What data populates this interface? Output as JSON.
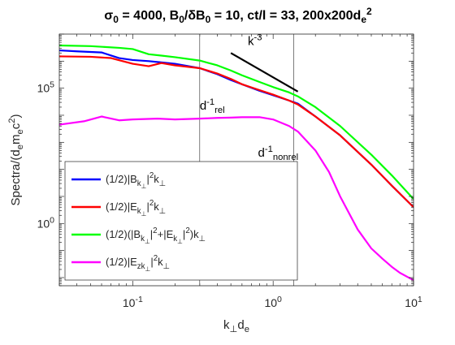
{
  "chart_data": {
    "type": "line",
    "title": {
      "parts": [
        {
          "t": "σ"
        },
        {
          "t": "0",
          "s": "sub"
        },
        {
          "t": " = 4000, B"
        },
        {
          "t": "0",
          "s": "sub"
        },
        {
          "t": "/δB"
        },
        {
          "t": "0",
          "s": "sub"
        },
        {
          "t": " = 10, ct/l = 33, 200x200d"
        },
        {
          "t": "e",
          "s": "sub"
        },
        {
          "t": "2",
          "s": "sup"
        }
      ]
    },
    "xlabel": {
      "parts": [
        {
          "t": "k"
        },
        {
          "t": "⊥",
          "s": "sub"
        },
        {
          "t": "d"
        },
        {
          "t": "e",
          "s": "sub"
        }
      ]
    },
    "ylabel": {
      "parts": [
        {
          "t": "Spectra/(d"
        },
        {
          "t": "e",
          "s": "sub"
        },
        {
          "t": "m"
        },
        {
          "t": "e",
          "s": "sub"
        },
        {
          "t": "c"
        },
        {
          "t": "2",
          "s": "sup"
        },
        {
          "t": ")"
        }
      ]
    },
    "xscale": "log",
    "yscale": "log",
    "xlim": [
      0.03,
      10
    ],
    "ylim": [
      0.005,
      10000000
    ],
    "grid": false,
    "legend_position": "bottom-left",
    "xticks": [
      {
        "value": 0.1,
        "base": "10",
        "exp": "-1"
      },
      {
        "value": 1,
        "base": "10",
        "exp": "0"
      },
      {
        "value": 10,
        "base": "10",
        "exp": "1"
      }
    ],
    "yticks": [
      {
        "value": 1,
        "base": "10",
        "exp": "0"
      },
      {
        "value": 100000,
        "base": "10",
        "exp": "5"
      }
    ],
    "vlines": [
      0.3,
      1.4
    ],
    "series": [
      {
        "name": {
          "parts": [
            {
              "t": "(1/2)|B"
            },
            {
              "t": "k",
              "s": "sub"
            },
            {
              "t": "⊥",
              "s": "sub2"
            },
            {
              "t": "|"
            },
            {
              "t": "2",
              "s": "sup"
            },
            {
              "t": "k"
            },
            {
              "t": "⊥",
              "s": "sub"
            }
          ]
        },
        "color": "#0000ff",
        "points": [
          [
            0.03,
            2500000
          ],
          [
            0.04,
            2300000
          ],
          [
            0.06,
            2100000
          ],
          [
            0.08,
            1300000
          ],
          [
            0.1,
            1100000
          ],
          [
            0.13,
            1000000
          ],
          [
            0.16,
            900000
          ],
          [
            0.2,
            800000
          ],
          [
            0.3,
            550000
          ],
          [
            0.4,
            330000
          ],
          [
            0.5,
            200000
          ],
          [
            0.6,
            140000
          ],
          [
            0.8,
            80000
          ],
          [
            1.0,
            55000
          ],
          [
            1.3,
            35000
          ],
          [
            1.5,
            27000
          ],
          [
            2.0,
            9000
          ],
          [
            3.0,
            1800
          ],
          [
            5.0,
            150
          ],
          [
            7.0,
            25
          ],
          [
            10.0,
            4
          ]
        ]
      },
      {
        "name": {
          "parts": [
            {
              "t": "(1/2)|E"
            },
            {
              "t": "k",
              "s": "sub"
            },
            {
              "t": "⊥",
              "s": "sub2"
            },
            {
              "t": "|"
            },
            {
              "t": "2",
              "s": "sup"
            },
            {
              "t": "k"
            },
            {
              "t": "⊥",
              "s": "sub"
            }
          ]
        },
        "color": "#ff0000",
        "points": [
          [
            0.03,
            1500000
          ],
          [
            0.05,
            1450000
          ],
          [
            0.07,
            1300000
          ],
          [
            0.1,
            800000
          ],
          [
            0.13,
            650000
          ],
          [
            0.16,
            850000
          ],
          [
            0.2,
            700000
          ],
          [
            0.3,
            550000
          ],
          [
            0.4,
            350000
          ],
          [
            0.5,
            220000
          ],
          [
            0.6,
            140000
          ],
          [
            0.8,
            85000
          ],
          [
            1.0,
            58000
          ],
          [
            1.3,
            35000
          ],
          [
            1.5,
            25000
          ],
          [
            2.0,
            9000
          ],
          [
            3.0,
            1800
          ],
          [
            5.0,
            150
          ],
          [
            7.0,
            25
          ],
          [
            10.0,
            4
          ]
        ]
      },
      {
        "name": {
          "parts": [
            {
              "t": "(1/2)(|B"
            },
            {
              "t": "k",
              "s": "sub"
            },
            {
              "t": "⊥",
              "s": "sub2"
            },
            {
              "t": "|"
            },
            {
              "t": "2",
              "s": "sup"
            },
            {
              "t": "+|E"
            },
            {
              "t": "k",
              "s": "sub"
            },
            {
              "t": "⊥",
              "s": "sub2"
            },
            {
              "t": "|"
            },
            {
              "t": "2",
              "s": "sup"
            },
            {
              "t": ")k"
            },
            {
              "t": "⊥",
              "s": "sub"
            }
          ]
        },
        "color": "#00ff00",
        "points": [
          [
            0.03,
            3800000
          ],
          [
            0.05,
            3600000
          ],
          [
            0.08,
            3100000
          ],
          [
            0.1,
            2800000
          ],
          [
            0.13,
            1800000
          ],
          [
            0.16,
            1600000
          ],
          [
            0.2,
            1400000
          ],
          [
            0.3,
            1050000
          ],
          [
            0.4,
            700000
          ],
          [
            0.5,
            450000
          ],
          [
            0.6,
            300000
          ],
          [
            0.8,
            170000
          ],
          [
            1.0,
            110000
          ],
          [
            1.3,
            70000
          ],
          [
            1.5,
            50000
          ],
          [
            2.0,
            20000
          ],
          [
            3.0,
            4000
          ],
          [
            5.0,
            350
          ],
          [
            7.0,
            60
          ],
          [
            10.0,
            8
          ]
        ]
      },
      {
        "name": {
          "parts": [
            {
              "t": "(1/2)|E"
            },
            {
              "t": "zk",
              "s": "sub"
            },
            {
              "t": "⊥",
              "s": "sub2"
            },
            {
              "t": "|"
            },
            {
              "t": "2",
              "s": "sup"
            },
            {
              "t": "k"
            },
            {
              "t": "⊥",
              "s": "sub"
            }
          ]
        },
        "color": "#ff00ff",
        "points": [
          [
            0.03,
            4500
          ],
          [
            0.045,
            6000
          ],
          [
            0.06,
            9000
          ],
          [
            0.08,
            6500
          ],
          [
            0.1,
            7000
          ],
          [
            0.15,
            7500
          ],
          [
            0.2,
            7000
          ],
          [
            0.3,
            7500
          ],
          [
            0.4,
            8000
          ],
          [
            0.5,
            8200
          ],
          [
            0.6,
            8500
          ],
          [
            0.8,
            8500
          ],
          [
            1.0,
            7000
          ],
          [
            1.3,
            4000
          ],
          [
            1.5,
            2500
          ],
          [
            2.0,
            500
          ],
          [
            2.5,
            80
          ],
          [
            3.0,
            10
          ],
          [
            4.0,
            0.6
          ],
          [
            5.0,
            0.12
          ],
          [
            6.0,
            0.05
          ],
          [
            7.0,
            0.025
          ],
          [
            8.0,
            0.015
          ],
          [
            10.0,
            0.008
          ]
        ]
      }
    ],
    "reference_line": {
      "label": {
        "parts": [
          {
            "t": "k"
          },
          {
            "t": "-3",
            "s": "sup"
          }
        ]
      },
      "points": [
        [
          0.5,
          2000000
        ],
        [
          1.5,
          75000
        ]
      ],
      "color": "#000000"
    },
    "annotations": [
      {
        "name": "annotation-d-rel",
        "x": 0.3,
        "y": 16000,
        "parts": [
          {
            "t": "d"
          },
          {
            "t": "-1",
            "s": "sup"
          },
          {
            "t": "rel",
            "s": "sub"
          }
        ]
      },
      {
        "name": "annotation-d-nonrel",
        "x": 0.78,
        "y": 290,
        "parts": [
          {
            "t": "d"
          },
          {
            "t": "-1",
            "s": "sup"
          },
          {
            "t": "nonrel",
            "s": "sub"
          }
        ]
      }
    ]
  }
}
